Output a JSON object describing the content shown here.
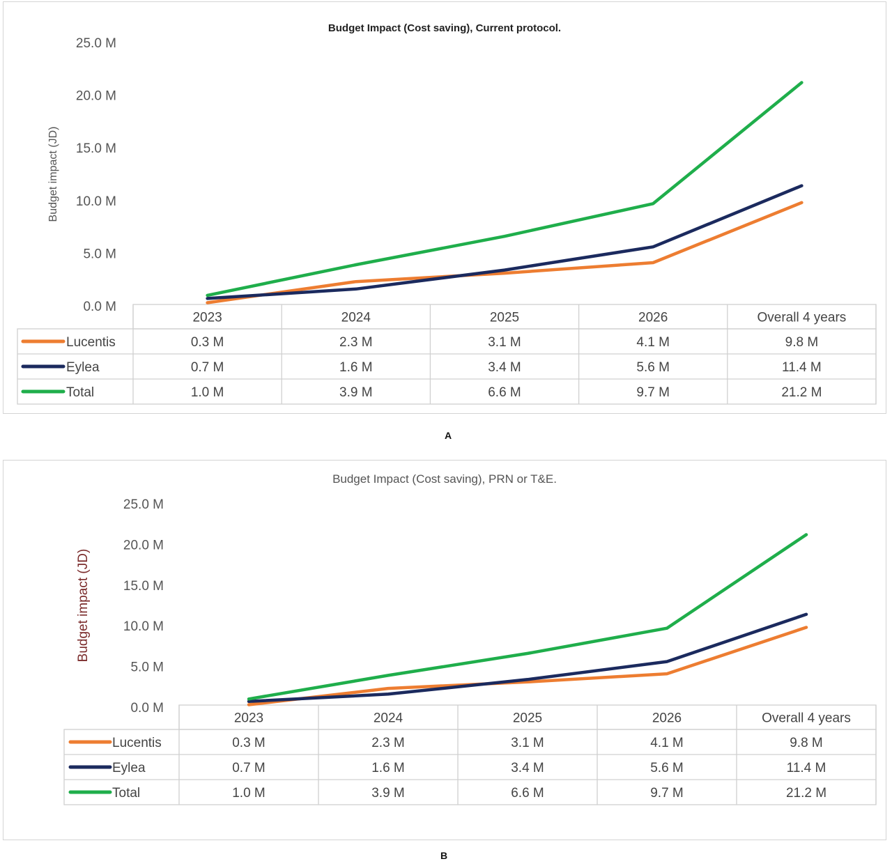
{
  "chart_data": [
    {
      "panel_label": "A",
      "type": "line",
      "title": "Budget Impact (Cost saving), Current protocol.",
      "ylabel": "Budget impact (JD)",
      "categories": [
        "2023",
        "2024",
        "2025",
        "2026",
        "Overall 4 years"
      ],
      "yticks": [
        "25.0 M",
        "20.0 M",
        "15.0 M",
        "10.0 M",
        "5.0 M",
        "0.0 M"
      ],
      "ylim": [
        0,
        25
      ],
      "series": [
        {
          "name": "Lucentis",
          "color": "#ed7d31",
          "values": [
            0.3,
            2.3,
            3.1,
            4.1,
            9.8
          ],
          "labels": [
            "0.3 M",
            "2.3 M",
            "3.1 M",
            "4.1 M",
            "9.8 M"
          ]
        },
        {
          "name": "Eylea",
          "color": "#1b2a5e",
          "values": [
            0.7,
            1.6,
            3.4,
            5.6,
            11.4
          ],
          "labels": [
            "0.7 M",
            "1.6 M",
            "3.4 M",
            "5.6 M",
            "11.4 M"
          ]
        },
        {
          "name": "Total",
          "color": "#1fae4b",
          "values": [
            1.0,
            3.9,
            6.6,
            9.7,
            21.2
          ],
          "labels": [
            "1.0 M",
            "3.9 M",
            "6.6 M",
            "9.7 M",
            "21.2 M"
          ]
        }
      ]
    },
    {
      "panel_label": "B",
      "type": "line",
      "title": "Budget Impact (Cost saving), PRN or T&E.",
      "ylabel": "Budget impact (JD)",
      "categories": [
        "2023",
        "2024",
        "2025",
        "2026",
        "Overall 4 years"
      ],
      "yticks": [
        "25.0 M",
        "20.0 M",
        "15.0 M",
        "10.0 M",
        "5.0 M",
        "0.0 M"
      ],
      "ylim": [
        0,
        25
      ],
      "series": [
        {
          "name": "Lucentis",
          "color": "#ed7d31",
          "values": [
            0.3,
            2.3,
            3.1,
            4.1,
            9.8
          ],
          "labels": [
            "0.3 M",
            "2.3 M",
            "3.1 M",
            "4.1 M",
            "9.8 M"
          ]
        },
        {
          "name": "Eylea",
          "color": "#1b2a5e",
          "values": [
            0.7,
            1.6,
            3.4,
            5.6,
            11.4
          ],
          "labels": [
            "0.7 M",
            "1.6 M",
            "3.4 M",
            "5.6 M",
            "11.4 M"
          ]
        },
        {
          "name": "Total",
          "color": "#1fae4b",
          "values": [
            1.0,
            3.9,
            6.6,
            9.7,
            21.2
          ],
          "labels": [
            "1.0 M",
            "3.9 M",
            "6.6 M",
            "9.7 M",
            "21.2 M"
          ]
        }
      ]
    }
  ]
}
